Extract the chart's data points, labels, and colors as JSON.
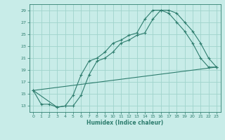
{
  "xlabel": "Humidex (Indice chaleur)",
  "bg_color": "#c8ece8",
  "grid_color": "#a0d4cc",
  "line_color": "#2e7d6e",
  "xlim": [
    -0.5,
    23.5
  ],
  "ylim": [
    12,
    30
  ],
  "yticks": [
    13,
    15,
    17,
    19,
    21,
    23,
    25,
    27,
    29
  ],
  "xticks": [
    0,
    1,
    2,
    3,
    4,
    5,
    6,
    7,
    8,
    9,
    10,
    11,
    12,
    13,
    14,
    15,
    16,
    17,
    18,
    19,
    20,
    21,
    22,
    23
  ],
  "line1_x": [
    0,
    1,
    2,
    3,
    4,
    5,
    6,
    7,
    8,
    9,
    10,
    11,
    12,
    13,
    14,
    15,
    16,
    17,
    18,
    19,
    20,
    21,
    22,
    23
  ],
  "line1_y": [
    15.6,
    13.3,
    13.3,
    12.8,
    13.0,
    13.0,
    14.8,
    18.2,
    20.5,
    21.0,
    22.0,
    23.5,
    24.0,
    24.8,
    25.2,
    27.5,
    29.0,
    29.0,
    28.5,
    27.0,
    25.5,
    23.5,
    21.0,
    19.5
  ],
  "line2_x": [
    0,
    3,
    4,
    5,
    6,
    7,
    8,
    9,
    10,
    11,
    12,
    13,
    14,
    15,
    16,
    17,
    18,
    19,
    20,
    21,
    22,
    23
  ],
  "line2_y": [
    15.6,
    12.8,
    13.0,
    14.8,
    18.2,
    20.5,
    21.0,
    22.0,
    23.5,
    24.0,
    24.8,
    25.2,
    27.5,
    29.0,
    29.0,
    28.5,
    27.0,
    25.5,
    23.5,
    21.0,
    19.5,
    19.5
  ],
  "line3_x": [
    0,
    23
  ],
  "line3_y": [
    15.6,
    19.5
  ]
}
